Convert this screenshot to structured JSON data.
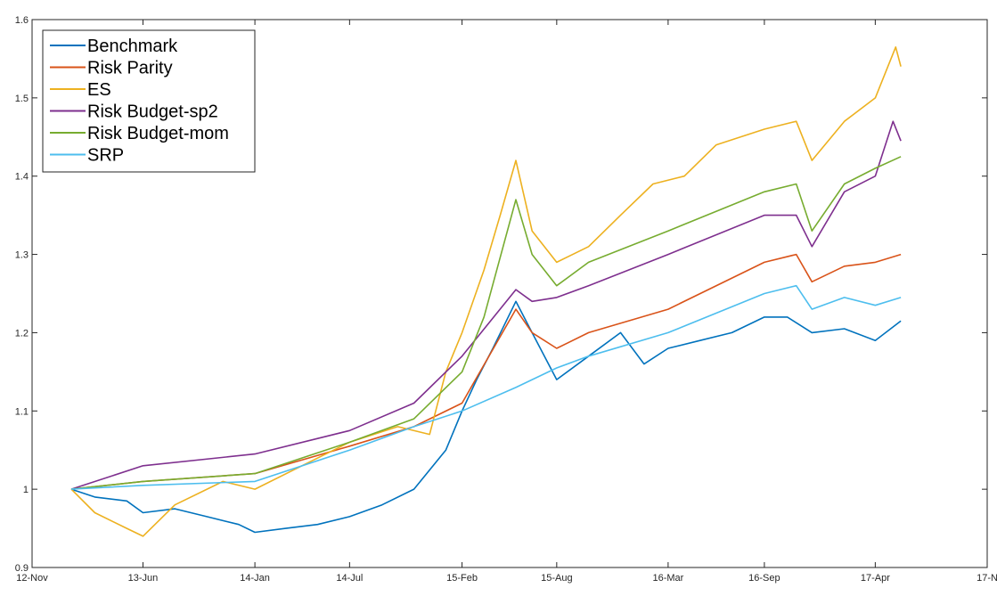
{
  "chart_data": {
    "type": "line",
    "title": "",
    "xlabel": "",
    "ylabel": "",
    "xlim": [
      "2012-11-01",
      "2017-11-01"
    ],
    "ylim": [
      0.9,
      1.6
    ],
    "grid": false,
    "legend_position": "top-left",
    "x_ticks": [
      {
        "date": "2012-11-01",
        "label": "12-Nov"
      },
      {
        "date": "2013-06-01",
        "label": "13-Jun"
      },
      {
        "date": "2014-01-01",
        "label": "14-Jan"
      },
      {
        "date": "2014-07-01",
        "label": "14-Jul"
      },
      {
        "date": "2015-02-01",
        "label": "15-Feb"
      },
      {
        "date": "2015-08-01",
        "label": "15-Aug"
      },
      {
        "date": "2016-03-01",
        "label": "16-Mar"
      },
      {
        "date": "2016-09-01",
        "label": "16-Sep"
      },
      {
        "date": "2017-04-01",
        "label": "17-Apr"
      },
      {
        "date": "2017-11-01",
        "label": "17-N"
      }
    ],
    "y_ticks": [
      {
        "value": 0.9,
        "label": "0.9"
      },
      {
        "value": 1.0,
        "label": "1"
      },
      {
        "value": 1.1,
        "label": "1.1"
      },
      {
        "value": 1.2,
        "label": "1.2"
      },
      {
        "value": 1.3,
        "label": "1.3"
      },
      {
        "value": 1.4,
        "label": "1.4"
      },
      {
        "value": 1.5,
        "label": "1.5"
      },
      {
        "value": 1.6,
        "label": "1.6"
      }
    ],
    "series": [
      {
        "name": "Benchmark",
        "color": "#0072BD",
        "points": [
          [
            "2013-01-15",
            1.0
          ],
          [
            "2013-03-01",
            0.99
          ],
          [
            "2013-05-01",
            0.985
          ],
          [
            "2013-06-01",
            0.97
          ],
          [
            "2013-08-01",
            0.975
          ],
          [
            "2013-10-01",
            0.965
          ],
          [
            "2013-12-01",
            0.955
          ],
          [
            "2014-01-01",
            0.945
          ],
          [
            "2014-03-01",
            0.95
          ],
          [
            "2014-05-01",
            0.955
          ],
          [
            "2014-07-01",
            0.965
          ],
          [
            "2014-09-01",
            0.98
          ],
          [
            "2014-11-01",
            1.0
          ],
          [
            "2015-01-01",
            1.05
          ],
          [
            "2015-02-01",
            1.1
          ],
          [
            "2015-03-01",
            1.14
          ],
          [
            "2015-04-01",
            1.18
          ],
          [
            "2015-05-15",
            1.24
          ],
          [
            "2015-06-15",
            1.2
          ],
          [
            "2015-08-01",
            1.14
          ],
          [
            "2015-10-01",
            1.17
          ],
          [
            "2015-12-01",
            1.2
          ],
          [
            "2016-01-15",
            1.16
          ],
          [
            "2016-03-01",
            1.18
          ],
          [
            "2016-05-01",
            1.19
          ],
          [
            "2016-07-01",
            1.2
          ],
          [
            "2016-09-01",
            1.22
          ],
          [
            "2016-10-15",
            1.22
          ],
          [
            "2016-12-01",
            1.2
          ],
          [
            "2017-02-01",
            1.205
          ],
          [
            "2017-04-01",
            1.19
          ],
          [
            "2017-05-20",
            1.215
          ]
        ]
      },
      {
        "name": "Risk Parity",
        "color": "#D95319",
        "points": [
          [
            "2013-01-15",
            1.0
          ],
          [
            "2013-06-01",
            1.01
          ],
          [
            "2014-01-01",
            1.02
          ],
          [
            "2014-07-01",
            1.055
          ],
          [
            "2014-11-01",
            1.08
          ],
          [
            "2015-02-01",
            1.11
          ],
          [
            "2015-05-15",
            1.23
          ],
          [
            "2015-06-15",
            1.2
          ],
          [
            "2015-08-01",
            1.18
          ],
          [
            "2015-10-01",
            1.2
          ],
          [
            "2016-03-01",
            1.23
          ],
          [
            "2016-09-01",
            1.29
          ],
          [
            "2016-11-01",
            1.3
          ],
          [
            "2016-12-01",
            1.265
          ],
          [
            "2017-02-01",
            1.285
          ],
          [
            "2017-04-01",
            1.29
          ],
          [
            "2017-05-20",
            1.3
          ]
        ]
      },
      {
        "name": "ES",
        "color": "#EDB120",
        "points": [
          [
            "2013-01-15",
            1.0
          ],
          [
            "2013-03-01",
            0.97
          ],
          [
            "2013-05-01",
            0.95
          ],
          [
            "2013-06-01",
            0.94
          ],
          [
            "2013-08-01",
            0.98
          ],
          [
            "2013-11-01",
            1.01
          ],
          [
            "2014-01-01",
            1.0
          ],
          [
            "2014-04-01",
            1.03
          ],
          [
            "2014-07-01",
            1.06
          ],
          [
            "2014-10-01",
            1.08
          ],
          [
            "2014-12-01",
            1.07
          ],
          [
            "2015-01-01",
            1.15
          ],
          [
            "2015-02-01",
            1.2
          ],
          [
            "2015-03-15",
            1.28
          ],
          [
            "2015-04-15",
            1.35
          ],
          [
            "2015-05-15",
            1.42
          ],
          [
            "2015-06-15",
            1.33
          ],
          [
            "2015-08-01",
            1.29
          ],
          [
            "2015-10-01",
            1.31
          ],
          [
            "2015-12-01",
            1.35
          ],
          [
            "2016-02-01",
            1.39
          ],
          [
            "2016-04-01",
            1.4
          ],
          [
            "2016-06-01",
            1.44
          ],
          [
            "2016-09-01",
            1.46
          ],
          [
            "2016-11-01",
            1.47
          ],
          [
            "2016-12-01",
            1.42
          ],
          [
            "2017-02-01",
            1.47
          ],
          [
            "2017-04-01",
            1.5
          ],
          [
            "2017-05-10",
            1.565
          ],
          [
            "2017-05-20",
            1.54
          ]
        ]
      },
      {
        "name": "Risk Budget-sp2",
        "color": "#7E2F8E",
        "points": [
          [
            "2013-01-15",
            1.0
          ],
          [
            "2013-06-01",
            1.03
          ],
          [
            "2014-01-01",
            1.045
          ],
          [
            "2014-07-01",
            1.075
          ],
          [
            "2014-11-01",
            1.11
          ],
          [
            "2015-02-01",
            1.17
          ],
          [
            "2015-05-15",
            1.255
          ],
          [
            "2015-06-15",
            1.24
          ],
          [
            "2015-08-01",
            1.245
          ],
          [
            "2015-10-01",
            1.26
          ],
          [
            "2016-03-01",
            1.3
          ],
          [
            "2016-09-01",
            1.35
          ],
          [
            "2016-11-01",
            1.35
          ],
          [
            "2016-12-01",
            1.31
          ],
          [
            "2017-02-01",
            1.38
          ],
          [
            "2017-04-01",
            1.4
          ],
          [
            "2017-05-05",
            1.47
          ],
          [
            "2017-05-20",
            1.445
          ]
        ]
      },
      {
        "name": "Risk Budget-mom",
        "color": "#77AC30",
        "points": [
          [
            "2013-01-15",
            1.0
          ],
          [
            "2013-06-01",
            1.01
          ],
          [
            "2014-01-01",
            1.02
          ],
          [
            "2014-07-01",
            1.06
          ],
          [
            "2014-11-01",
            1.09
          ],
          [
            "2015-02-01",
            1.15
          ],
          [
            "2015-03-15",
            1.22
          ],
          [
            "2015-05-15",
            1.37
          ],
          [
            "2015-06-15",
            1.3
          ],
          [
            "2015-08-01",
            1.26
          ],
          [
            "2015-10-01",
            1.29
          ],
          [
            "2016-03-01",
            1.33
          ],
          [
            "2016-09-01",
            1.38
          ],
          [
            "2016-11-01",
            1.39
          ],
          [
            "2016-12-01",
            1.33
          ],
          [
            "2017-02-01",
            1.39
          ],
          [
            "2017-04-01",
            1.41
          ],
          [
            "2017-05-20",
            1.425
          ]
        ]
      },
      {
        "name": "SRP",
        "color": "#4DBEEE",
        "points": [
          [
            "2013-01-15",
            1.0
          ],
          [
            "2013-06-01",
            1.005
          ],
          [
            "2014-01-01",
            1.01
          ],
          [
            "2014-07-01",
            1.05
          ],
          [
            "2014-11-01",
            1.08
          ],
          [
            "2015-02-01",
            1.1
          ],
          [
            "2015-05-15",
            1.13
          ],
          [
            "2015-08-01",
            1.155
          ],
          [
            "2015-10-01",
            1.17
          ],
          [
            "2016-03-01",
            1.2
          ],
          [
            "2016-09-01",
            1.25
          ],
          [
            "2016-11-01",
            1.26
          ],
          [
            "2016-12-01",
            1.23
          ],
          [
            "2017-02-01",
            1.245
          ],
          [
            "2017-04-01",
            1.235
          ],
          [
            "2017-05-20",
            1.245
          ]
        ]
      }
    ]
  }
}
